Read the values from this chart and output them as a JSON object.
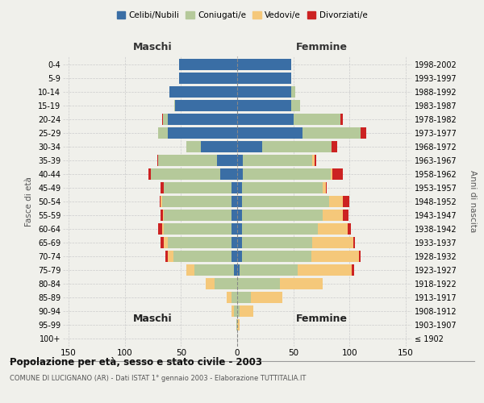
{
  "age_groups": [
    "100+",
    "95-99",
    "90-94",
    "85-89",
    "80-84",
    "75-79",
    "70-74",
    "65-69",
    "60-64",
    "55-59",
    "50-54",
    "45-49",
    "40-44",
    "35-39",
    "30-34",
    "25-29",
    "20-24",
    "15-19",
    "10-14",
    "5-9",
    "0-4"
  ],
  "birth_years": [
    "≤ 1902",
    "1903-1907",
    "1908-1912",
    "1913-1917",
    "1918-1922",
    "1923-1927",
    "1928-1932",
    "1933-1937",
    "1938-1942",
    "1943-1947",
    "1948-1952",
    "1953-1957",
    "1958-1962",
    "1963-1967",
    "1968-1972",
    "1973-1977",
    "1978-1982",
    "1983-1987",
    "1988-1992",
    "1993-1997",
    "1998-2002"
  ],
  "males": {
    "celibi": [
      0,
      0,
      0,
      0,
      0,
      3,
      5,
      5,
      5,
      5,
      5,
      5,
      15,
      18,
      32,
      62,
      62,
      55,
      60,
      52,
      52
    ],
    "coniugati": [
      0,
      1,
      3,
      5,
      20,
      35,
      52,
      57,
      60,
      60,
      62,
      60,
      62,
      52,
      13,
      8,
      4,
      1,
      0,
      0,
      0
    ],
    "vedovi": [
      0,
      0,
      2,
      4,
      8,
      7,
      5,
      3,
      2,
      1,
      1,
      0,
      0,
      0,
      0,
      0,
      0,
      0,
      0,
      0,
      0
    ],
    "divorziati": [
      0,
      0,
      0,
      0,
      0,
      0,
      2,
      3,
      3,
      2,
      1,
      3,
      2,
      1,
      0,
      0,
      1,
      0,
      0,
      0,
      0
    ]
  },
  "females": {
    "nubili": [
      0,
      0,
      0,
      0,
      0,
      2,
      4,
      4,
      4,
      4,
      4,
      4,
      5,
      5,
      22,
      58,
      50,
      48,
      48,
      48,
      48
    ],
    "coniugate": [
      0,
      0,
      2,
      12,
      38,
      52,
      62,
      63,
      68,
      72,
      78,
      72,
      78,
      62,
      62,
      52,
      42,
      8,
      4,
      0,
      0
    ],
    "vedove": [
      0,
      2,
      12,
      28,
      38,
      48,
      42,
      36,
      26,
      18,
      12,
      3,
      2,
      2,
      0,
      0,
      0,
      0,
      0,
      0,
      0
    ],
    "divorziate": [
      0,
      0,
      0,
      0,
      0,
      2,
      2,
      2,
      3,
      5,
      6,
      1,
      9,
      1,
      5,
      5,
      2,
      0,
      0,
      0,
      0
    ]
  },
  "color_celibi": "#3a6ea5",
  "color_coniugati": "#b5c99a",
  "color_vedovi": "#f5c87a",
  "color_divorziati": "#cc2222",
  "xlim": 155,
  "title": "Popolazione per età, sesso e stato civile - 2003",
  "subtitle": "COMUNE DI LUCIGNANO (AR) - Dati ISTAT 1° gennaio 2003 - Elaborazione TUTTITALIA.IT",
  "ylabel_left": "Fasce di età",
  "ylabel_right": "Anni di nascita",
  "xlabel_maschi": "Maschi",
  "xlabel_femmine": "Femmine",
  "bg_color": "#f0f0eb"
}
